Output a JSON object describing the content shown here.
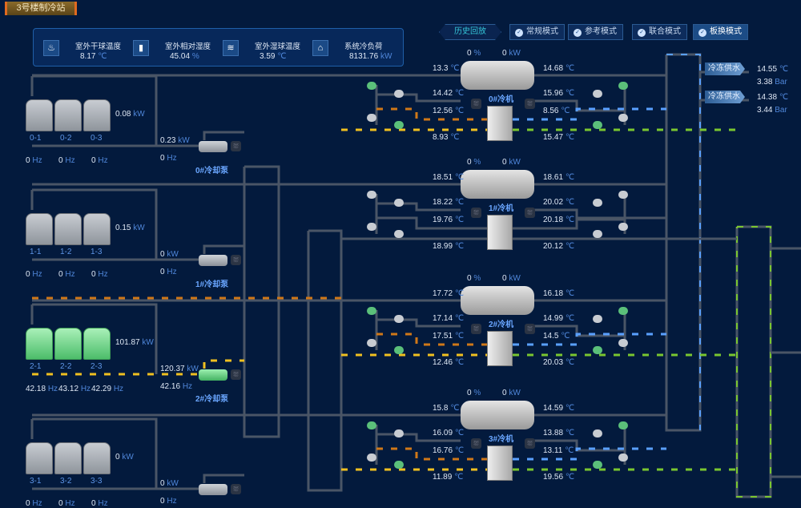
{
  "title": "3号楼制冷站",
  "weather": [
    {
      "label": "室外干球温度",
      "value": "8.17",
      "unit": "℃",
      "icon": "thermometer-icon"
    },
    {
      "label": "室外相对湿度",
      "value": "45.04",
      "unit": "%",
      "icon": "humidity-icon"
    },
    {
      "label": "室外湿球温度",
      "value": "3.59",
      "unit": "℃",
      "icon": "wet-bulb-icon"
    },
    {
      "label": "系统冷负荷",
      "value": "8131.76",
      "unit": "kW",
      "icon": "house-load-icon"
    }
  ],
  "history_label": "历史回放",
  "modes": [
    {
      "label": "常规模式",
      "active": false
    },
    {
      "label": "参考模式",
      "active": false
    },
    {
      "label": "联合模式",
      "active": false
    },
    {
      "label": "板换模式",
      "active": true
    }
  ],
  "supply": [
    {
      "label": "冷冻供水",
      "temp": "14.55",
      "temp_unit": "℃",
      "pressure": "3.38",
      "pressure_unit": "Bar"
    },
    {
      "label": "冷冻供水",
      "temp": "14.38",
      "temp_unit": "℃",
      "pressure": "3.44",
      "pressure_unit": "Bar"
    }
  ],
  "chillers": [
    {
      "name": "0#冷机",
      "load_pct": "0",
      "power": "0",
      "left": [
        "13.3",
        "14.42",
        "12.56",
        "8.93"
      ],
      "right": [
        "14.68",
        "15.96",
        "8.56",
        "15.47"
      ]
    },
    {
      "name": "1#冷机",
      "load_pct": "0",
      "power": "0",
      "left": [
        "18.51",
        "18.22",
        "19.76",
        "18.99"
      ],
      "right": [
        "18.61",
        "20.02",
        "20.18",
        "20.12"
      ]
    },
    {
      "name": "2#冷机",
      "load_pct": "0",
      "power": "0",
      "left": [
        "17.72",
        "17.14",
        "17.51",
        "12.46"
      ],
      "right": [
        "16.18",
        "14.99",
        "14.5",
        "20.03"
      ]
    },
    {
      "name": "3#冷机",
      "load_pct": "0",
      "power": "0",
      "left": [
        "15.8",
        "16.09",
        "16.76",
        "11.89"
      ],
      "right": [
        "14.59",
        "13.88",
        "13.11",
        "19.56"
      ]
    }
  ],
  "tower_groups": [
    {
      "towers": [
        "0-1",
        "0-2",
        "0-3"
      ],
      "hz": [
        "0",
        "0",
        "0"
      ],
      "power": "0.08",
      "pump": {
        "name": "0#冷却泵",
        "power": "0.23",
        "hz": "0"
      },
      "active": false
    },
    {
      "towers": [
        "1-1",
        "1-2",
        "1-3"
      ],
      "hz": [
        "0",
        "0",
        "0"
      ],
      "power": "0.15",
      "pump": {
        "name": "1#冷却泵",
        "power": "0",
        "hz": "0"
      },
      "active": false
    },
    {
      "towers": [
        "2-1",
        "2-2",
        "2-3"
      ],
      "hz": [
        "42.18",
        "43.12",
        "42.29"
      ],
      "power": "101.87",
      "pump": {
        "name": "2#冷却泵",
        "power": "120.37",
        "hz": "42.16"
      },
      "active": true
    },
    {
      "towers": [
        "3-1",
        "3-2",
        "3-3"
      ],
      "hz": [
        "0",
        "0",
        "0"
      ],
      "power": "0",
      "pump": {
        "name": "",
        "power": "0",
        "hz": "0"
      },
      "active": false
    }
  ],
  "units": {
    "temp": "℃",
    "pct": "%",
    "kw": "kW",
    "hz": "Hz"
  },
  "colors": {
    "background": "#031a3d",
    "pipe": "#4a5566",
    "cooling_active": "#f0c020",
    "cooling_return": "#d07818",
    "chilled_supply": "#5aa0ff",
    "chilled_return": "#7ac630"
  }
}
